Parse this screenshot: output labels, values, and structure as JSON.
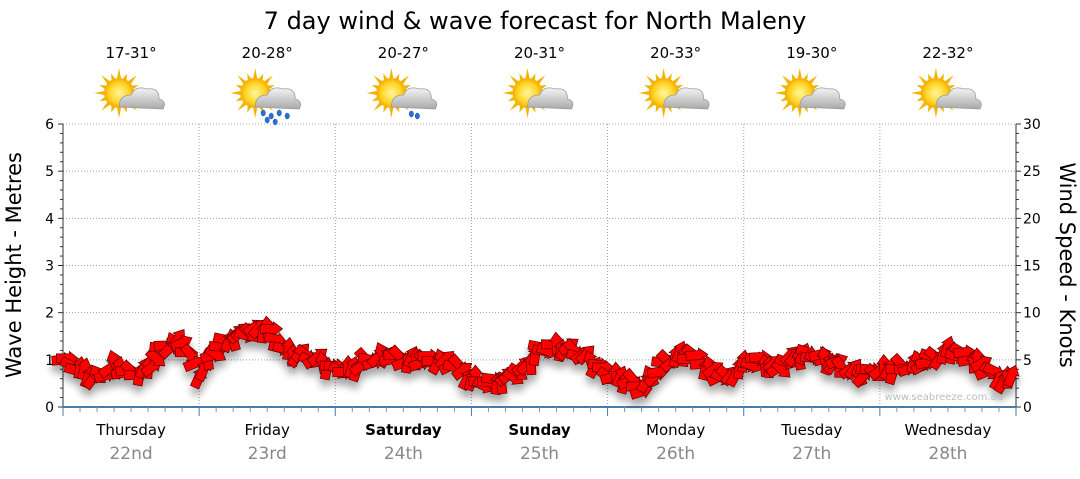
{
  "chart_data": {
    "type": "line",
    "title": "7 day wind & wave forecast for North Maleny",
    "ylabel_left": "Wave Height - Metres",
    "ylabel_right": "Wind Speed - Knots",
    "ylim_left": [
      0,
      6
    ],
    "ylim_right": [
      0,
      30
    ],
    "yticks_left": [
      "0",
      "1",
      "2",
      "3",
      "4",
      "5",
      "6"
    ],
    "yticks_right": [
      "0",
      "5",
      "10",
      "15",
      "20",
      "25",
      "30"
    ],
    "grid": true,
    "watermark": "www.seabreeze.com.au",
    "days": [
      {
        "day": "Thursday",
        "date": "22nd",
        "temp": "17-31°",
        "icon": "partly-cloudy-icon",
        "bold": false
      },
      {
        "day": "Friday",
        "date": "23rd",
        "temp": "20-28°",
        "icon": "showers-icon",
        "bold": false
      },
      {
        "day": "Saturday",
        "date": "24th",
        "temp": "20-27°",
        "icon": "light-showers-icon",
        "bold": true
      },
      {
        "day": "Sunday",
        "date": "25th",
        "temp": "20-31°",
        "icon": "partly-cloudy-icon",
        "bold": true
      },
      {
        "day": "Monday",
        "date": "26th",
        "temp": "20-33°",
        "icon": "partly-cloudy-icon",
        "bold": false
      },
      {
        "day": "Tuesday",
        "date": "27th",
        "temp": "19-30°",
        "icon": "partly-cloudy-icon",
        "bold": false
      },
      {
        "day": "Wednesday",
        "date": "28th",
        "temp": "22-32°",
        "icon": "partly-cloudy-icon",
        "bold": false
      }
    ],
    "series": [
      {
        "type": "wind-arrows",
        "color": "#ff0000",
        "unit": "knots",
        "x_hours": [
          0,
          3,
          6,
          9,
          12,
          15,
          18,
          21,
          24,
          27,
          30,
          33,
          36,
          39,
          42,
          45,
          48,
          51,
          54,
          57,
          60,
          63,
          66,
          69,
          72,
          75,
          78,
          81,
          84,
          87,
          90,
          93,
          96,
          99,
          102,
          105,
          108,
          111,
          114,
          117,
          120,
          123,
          126,
          129,
          132,
          135,
          138,
          141,
          144,
          147,
          150,
          153,
          156,
          159,
          162,
          165
        ],
        "values": [
          5,
          4,
          3,
          4.5,
          3.5,
          4,
          6.5,
          7,
          3.5,
          6,
          7.5,
          8,
          8.5,
          6,
          5.5,
          5,
          4,
          4,
          5,
          5.5,
          5,
          5,
          5,
          4.5,
          3,
          2.5,
          3,
          4,
          6,
          6.5,
          6,
          5,
          3.5,
          3,
          2,
          4,
          5.5,
          5.5,
          4,
          3,
          4.5,
          5,
          4,
          5.5,
          5.5,
          5,
          4,
          3.5,
          4,
          4,
          4.5,
          5,
          6,
          5.5,
          4.5,
          3
        ]
      }
    ]
  }
}
